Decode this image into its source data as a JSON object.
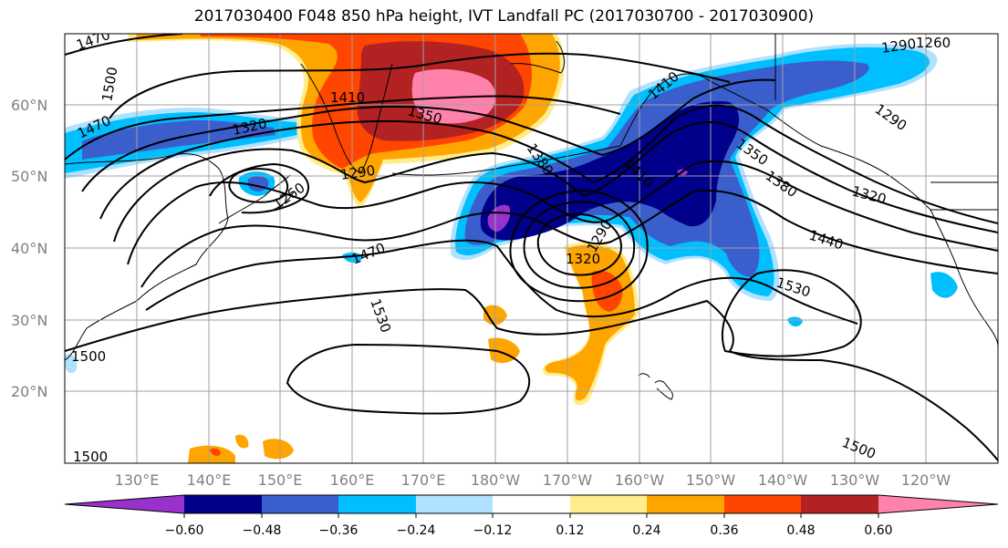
{
  "title": "2017030400 F048 850 hPa height, IVT Landfall PC (2017030700 - 2017030900)",
  "map": {
    "lat_labels": [
      "60°N",
      "50°N",
      "40°N",
      "30°N",
      "20°N"
    ],
    "lon_labels": [
      "130°E",
      "140°E",
      "150°E",
      "160°E",
      "170°E",
      "180°W",
      "170°W",
      "160°W",
      "150°W",
      "140°W",
      "130°W",
      "120°W"
    ],
    "contour_labels": [
      "1470",
      "1500",
      "1470",
      "1320",
      "1260",
      "1290",
      "1410",
      "1350",
      "1380",
      "1410",
      "1290",
      "1260",
      "1290",
      "1410",
      "1350",
      "1380",
      "1320",
      "1440",
      "1530",
      "1470",
      "1320",
      "1290",
      "1530",
      "1500",
      "1500",
      "1500"
    ],
    "colors": {
      "neg_060_below": "#9932cc",
      "neg_060_048": "#00008b",
      "neg_048_036": "#3a5fcd",
      "neg_036_024": "#00bfff",
      "neg_024_012": "#b0e2ff",
      "neutral": "#ffffff",
      "pos_012_024": "#ffec8b",
      "pos_024_036": "#ffa500",
      "pos_036_048": "#ff4500",
      "pos_048_060": "#b22222",
      "pos_060_above": "#ff82ab",
      "land": "#ffffff",
      "grid": "#a0a0a0"
    }
  },
  "colorbar": {
    "tick_labels": [
      "−0.60",
      "−0.48",
      "−0.36",
      "−0.24",
      "−0.12",
      "0.12",
      "0.24",
      "0.36",
      "0.48",
      "0.60"
    ],
    "colors": [
      "#9932cc",
      "#00008b",
      "#3a5fcd",
      "#00bfff",
      "#b0e2ff",
      "#ffffff",
      "#ffec8b",
      "#ffa500",
      "#ff4500",
      "#b22222",
      "#ff82ab"
    ]
  }
}
